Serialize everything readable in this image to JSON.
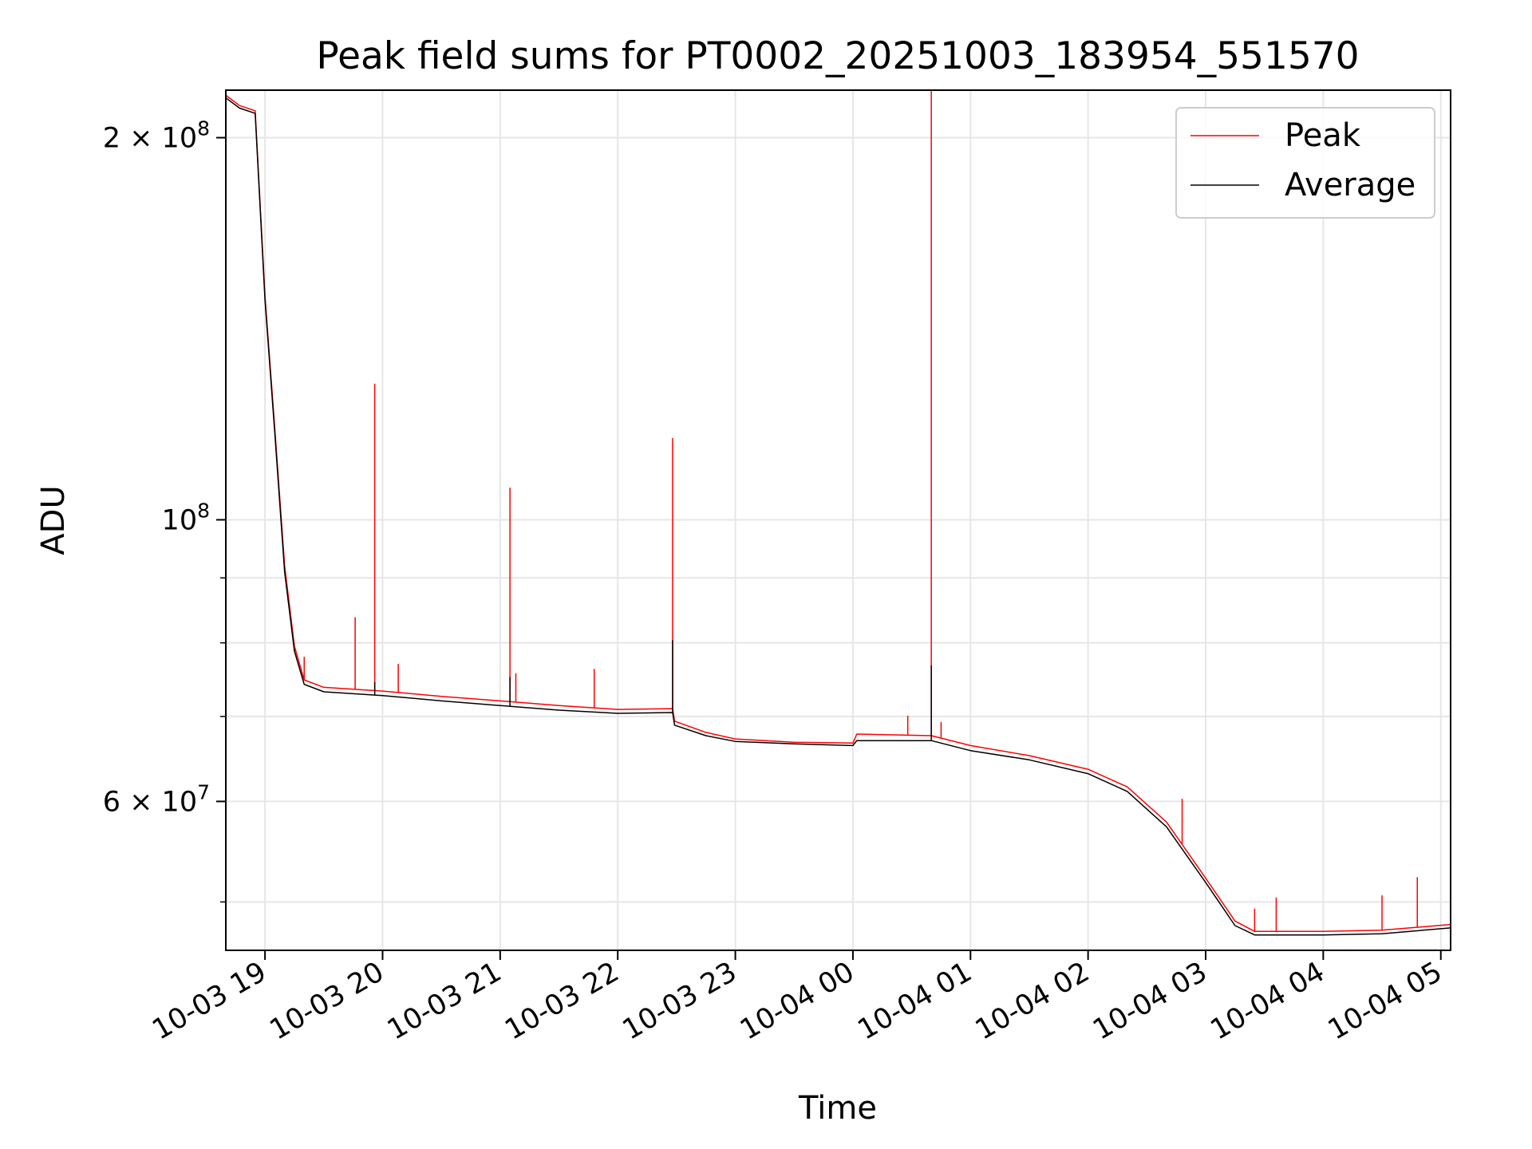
{
  "chart_data": {
    "type": "line",
    "title": "Peak field sums for PT0002_20251003_183954_551570",
    "xlabel": "Time",
    "ylabel": "ADU",
    "yscale": "log",
    "grid": true,
    "legend_position": "top-right",
    "xlim": [
      "2025-10-03 18:40",
      "2025-10-04 05:05"
    ],
    "ylim": [
      45800000,
      218000000
    ],
    "x_ticks": [
      "2025-10-03 19:00",
      "2025-10-03 20:00",
      "2025-10-03 21:00",
      "2025-10-03 22:00",
      "2025-10-03 23:00",
      "2025-10-04 00:00",
      "2025-10-04 01:00",
      "2025-10-04 02:00",
      "2025-10-04 03:00",
      "2025-10-04 04:00",
      "2025-10-04 05:00"
    ],
    "x_tick_labels": [
      "10-03 19",
      "10-03 20",
      "10-03 21",
      "10-03 22",
      "10-03 23",
      "10-04 00",
      "10-04 01",
      "10-04 02",
      "10-04 03",
      "10-04 04",
      "10-04 05"
    ],
    "y_ticks_major": [
      {
        "value": 200000000,
        "mantissa": "2",
        "exp": "8"
      },
      {
        "value": 100000000,
        "mantissa": "",
        "exp": "8"
      },
      {
        "value": 60000000,
        "mantissa": "6",
        "exp": "7"
      }
    ],
    "y_ticks_minor": [
      50000000,
      70000000,
      80000000,
      90000000
    ],
    "series": [
      {
        "name": "Peak",
        "color": "#ff0000",
        "points": [
          [
            "2025-10-03 18:40",
            216000000
          ],
          [
            "2025-10-03 18:47",
            212000000
          ],
          [
            "2025-10-03 18:55",
            210000000
          ],
          [
            "2025-10-03 19:00",
            150000000
          ],
          [
            "2025-10-03 19:05",
            118000000
          ],
          [
            "2025-10-03 19:10",
            92000000
          ],
          [
            "2025-10-03 19:15",
            79500000
          ],
          [
            "2025-10-03 19:20",
            74800000
          ],
          [
            "2025-10-03 19:30",
            73800000
          ],
          [
            "2025-10-03 20:00",
            73300000
          ],
          [
            "2025-10-03 20:30",
            72600000
          ],
          [
            "2025-10-03 21:00",
            72000000
          ],
          [
            "2025-10-03 21:30",
            71400000
          ],
          [
            "2025-10-03 22:00",
            70900000
          ],
          [
            "2025-10-03 22:28",
            71000000
          ],
          [
            "2025-10-03 22:29",
            69400000
          ],
          [
            "2025-10-03 22:45",
            68000000
          ],
          [
            "2025-10-03 23:00",
            67200000
          ],
          [
            "2025-10-03 23:30",
            66800000
          ],
          [
            "2025-10-04 00:00",
            66700000
          ],
          [
            "2025-10-04 00:02",
            67800000
          ],
          [
            "2025-10-04 00:40",
            67600000
          ],
          [
            "2025-10-04 01:00",
            66400000
          ],
          [
            "2025-10-04 01:30",
            65200000
          ],
          [
            "2025-10-04 02:00",
            63600000
          ],
          [
            "2025-10-04 02:20",
            61600000
          ],
          [
            "2025-10-04 02:40",
            57800000
          ],
          [
            "2025-10-04 03:00",
            52200000
          ],
          [
            "2025-10-04 03:15",
            48300000
          ],
          [
            "2025-10-04 03:25",
            47400000
          ],
          [
            "2025-10-04 04:00",
            47400000
          ],
          [
            "2025-10-04 04:30",
            47500000
          ],
          [
            "2025-10-04 05:05",
            48000000
          ]
        ],
        "spikes": [
          [
            "2025-10-03 19:20",
            78000000
          ],
          [
            "2025-10-03 19:46",
            83800000
          ],
          [
            "2025-10-03 19:56",
            128000000
          ],
          [
            "2025-10-03 20:08",
            77000000
          ],
          [
            "2025-10-03 21:05",
            106000000
          ],
          [
            "2025-10-03 21:08",
            75700000
          ],
          [
            "2025-10-03 21:48",
            76300000
          ],
          [
            "2025-10-03 22:28",
            116000000
          ],
          [
            "2025-10-04 00:28",
            70100000
          ],
          [
            "2025-10-04 00:40",
            218000000
          ],
          [
            "2025-10-04 00:45",
            69300000
          ],
          [
            "2025-10-04 02:48",
            60300000
          ],
          [
            "2025-10-04 03:25",
            49400000
          ],
          [
            "2025-10-04 03:36",
            50400000
          ],
          [
            "2025-10-04 04:30",
            50600000
          ],
          [
            "2025-10-04 04:48",
            52300000
          ]
        ]
      },
      {
        "name": "Average",
        "color": "#000000",
        "points": [
          [
            "2025-10-03 18:40",
            215000000
          ],
          [
            "2025-10-03 18:47",
            211000000
          ],
          [
            "2025-10-03 18:55",
            209000000
          ],
          [
            "2025-10-03 19:00",
            149000000
          ],
          [
            "2025-10-03 19:05",
            117000000
          ],
          [
            "2025-10-03 19:10",
            91000000
          ],
          [
            "2025-10-03 19:15",
            78800000
          ],
          [
            "2025-10-03 19:20",
            74200000
          ],
          [
            "2025-10-03 19:30",
            73200000
          ],
          [
            "2025-10-03 20:00",
            72700000
          ],
          [
            "2025-10-03 20:30",
            72000000
          ],
          [
            "2025-10-03 21:00",
            71400000
          ],
          [
            "2025-10-03 21:30",
            70800000
          ],
          [
            "2025-10-03 22:00",
            70400000
          ],
          [
            "2025-10-03 22:28",
            70500000
          ],
          [
            "2025-10-03 22:29",
            68900000
          ],
          [
            "2025-10-03 22:45",
            67600000
          ],
          [
            "2025-10-03 23:00",
            66900000
          ],
          [
            "2025-10-03 23:30",
            66600000
          ],
          [
            "2025-10-04 00:00",
            66400000
          ],
          [
            "2025-10-04 00:02",
            67000000
          ],
          [
            "2025-10-04 00:40",
            67000000
          ],
          [
            "2025-10-04 01:00",
            65800000
          ],
          [
            "2025-10-04 01:30",
            64700000
          ],
          [
            "2025-10-04 02:00",
            63100000
          ],
          [
            "2025-10-04 02:20",
            61100000
          ],
          [
            "2025-10-04 02:40",
            57300000
          ],
          [
            "2025-10-04 03:00",
            51800000
          ],
          [
            "2025-10-04 03:15",
            47900000
          ],
          [
            "2025-10-04 03:25",
            47100000
          ],
          [
            "2025-10-04 04:00",
            47100000
          ],
          [
            "2025-10-04 04:30",
            47200000
          ],
          [
            "2025-10-04 05:05",
            47700000
          ]
        ],
        "spikes": [
          [
            "2025-10-03 19:56",
            74500000
          ],
          [
            "2025-10-03 21:05",
            75200000
          ],
          [
            "2025-10-03 22:28",
            80400000
          ],
          [
            "2025-10-04 00:40",
            76800000
          ]
        ]
      }
    ]
  }
}
